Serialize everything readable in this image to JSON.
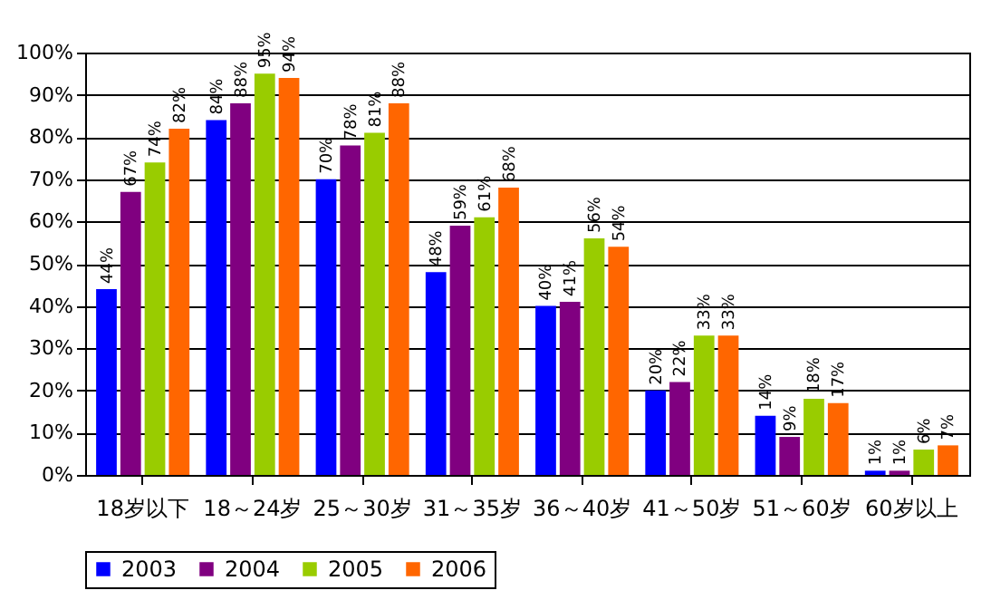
{
  "chart_data": {
    "type": "bar",
    "categories": [
      "18岁以下",
      "18～24岁",
      "25～30岁",
      "31～35岁",
      "36～40岁",
      "41～50岁",
      "51～60岁",
      "60岁以上"
    ],
    "series": [
      {
        "name": "2003",
        "color": "#0000ff",
        "values": [
          44,
          84,
          70,
          48,
          40,
          20,
          14,
          1
        ],
        "value_labels": [
          "44%",
          "84%",
          "70%",
          "48%",
          "40%",
          "20%",
          "14%",
          "1%"
        ]
      },
      {
        "name": "2004",
        "color": "#800080",
        "values": [
          67,
          88,
          78,
          59,
          41,
          22,
          9,
          1
        ],
        "value_labels": [
          "67%",
          "88%",
          "78%",
          "59%",
          "41%",
          "22%",
          "9%",
          "1%"
        ]
      },
      {
        "name": "2005",
        "color": "#99cc00",
        "values": [
          74,
          95,
          81,
          61,
          56,
          33,
          18,
          6
        ],
        "value_labels": [
          "74%",
          "95%",
          "81%",
          "61%",
          "56%",
          "33%",
          "18%",
          "6%"
        ]
      },
      {
        "name": "2006",
        "color": "#ff6600",
        "values": [
          82,
          94,
          88,
          68,
          54,
          33,
          17,
          7
        ],
        "value_labels": [
          "82%",
          "94%",
          "88%",
          "68%",
          "54%",
          "33%",
          "17%",
          "7%"
        ]
      }
    ],
    "ylim": [
      0,
      100
    ],
    "yticks": [
      {
        "value": 0,
        "label": "0%"
      },
      {
        "value": 10,
        "label": "10%"
      },
      {
        "value": 20,
        "label": "20%"
      },
      {
        "value": 30,
        "label": "30%"
      },
      {
        "value": 40,
        "label": "40%"
      },
      {
        "value": 50,
        "label": "50%"
      },
      {
        "value": 60,
        "label": "60%"
      },
      {
        "value": 70,
        "label": "70%"
      },
      {
        "value": 80,
        "label": "80%"
      },
      {
        "value": 90,
        "label": "90%"
      },
      {
        "value": 100,
        "label": "100%"
      }
    ],
    "grid": "y",
    "legend": "bottom left"
  }
}
